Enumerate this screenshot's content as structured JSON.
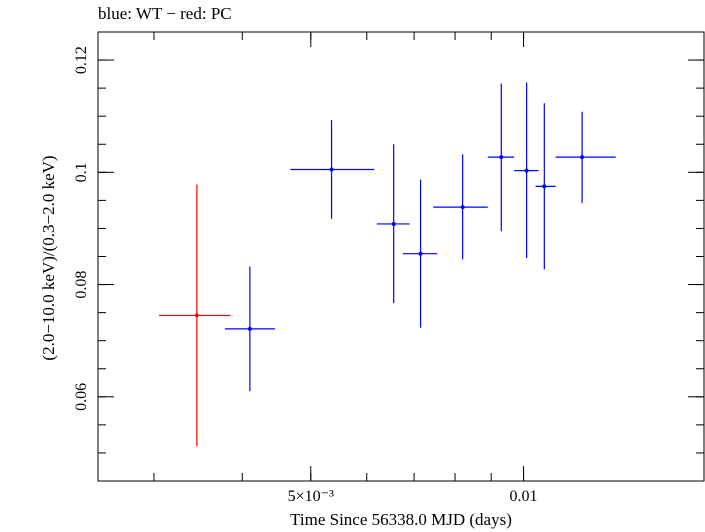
{
  "chart_data": {
    "type": "scatter",
    "title": "blue: WT − red: PC",
    "xlabel": "Time Since 56338.0 MJD (days)",
    "ylabel": "(2.0−10.0 keV)/(0.3−2.0 keV)",
    "x_scale": "log",
    "xlim": [
      0.0025,
      0.018
    ],
    "ylim": [
      0.045,
      0.125
    ],
    "x_ticks": [
      {
        "value": 0.005,
        "label": "5×10⁻³"
      },
      {
        "value": 0.01,
        "label": "0.01"
      }
    ],
    "y_ticks": [
      {
        "value": 0.06,
        "label": "0.06"
      },
      {
        "value": 0.08,
        "label": "0.08"
      },
      {
        "value": 0.1,
        "label": "0.1"
      },
      {
        "value": 0.12,
        "label": "0.12"
      }
    ],
    "grid": false,
    "series": [
      {
        "name": "PC",
        "color": "#ff0000",
        "points": [
          {
            "x": 0.00345,
            "xmin": 0.00305,
            "xmax": 0.00385,
            "y": 0.0745,
            "ymin": 0.0512,
            "ymax": 0.0978
          }
        ]
      },
      {
        "name": "WT",
        "color": "#0000ff",
        "points": [
          {
            "x": 0.0041,
            "xmin": 0.00378,
            "xmax": 0.00445,
            "y": 0.0721,
            "ymin": 0.061,
            "ymax": 0.0832
          },
          {
            "x": 0.00535,
            "xmin": 0.00468,
            "xmax": 0.00615,
            "y": 0.1005,
            "ymin": 0.0917,
            "ymax": 0.1093
          },
          {
            "x": 0.00655,
            "xmin": 0.0062,
            "xmax": 0.0069,
            "y": 0.0908,
            "ymin": 0.0767,
            "ymax": 0.105
          },
          {
            "x": 0.00715,
            "xmin": 0.00675,
            "xmax": 0.00755,
            "y": 0.0855,
            "ymin": 0.0723,
            "ymax": 0.0987
          },
          {
            "x": 0.0082,
            "xmin": 0.00745,
            "xmax": 0.0089,
            "y": 0.0938,
            "ymin": 0.0845,
            "ymax": 0.1032
          },
          {
            "x": 0.0093,
            "xmin": 0.0089,
            "xmax": 0.0097,
            "y": 0.1027,
            "ymin": 0.0895,
            "ymax": 0.1158
          },
          {
            "x": 0.0101,
            "xmin": 0.0097,
            "xmax": 0.0105,
            "y": 0.1003,
            "ymin": 0.0847,
            "ymax": 0.116
          },
          {
            "x": 0.0107,
            "xmin": 0.0104,
            "xmax": 0.0111,
            "y": 0.0975,
            "ymin": 0.0827,
            "ymax": 0.1123
          },
          {
            "x": 0.0121,
            "xmin": 0.0111,
            "xmax": 0.0135,
            "y": 0.1027,
            "ymin": 0.0945,
            "ymax": 0.1108
          }
        ]
      }
    ]
  }
}
